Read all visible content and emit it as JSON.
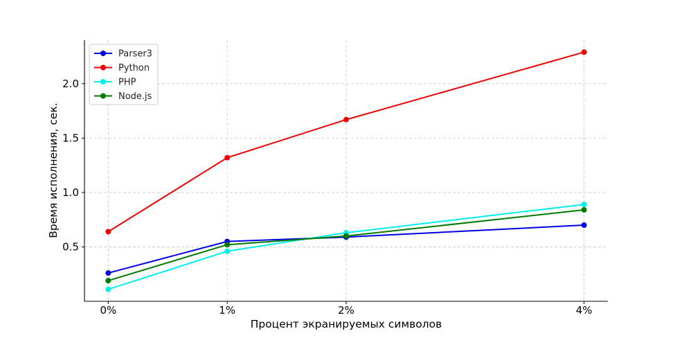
{
  "chart_data": {
    "type": "line",
    "title": "",
    "xlabel": "Процент экранируемых символов",
    "ylabel": "Время исполнения, сек.",
    "x": [
      0,
      1,
      2,
      4
    ],
    "x_tick_labels": [
      "0%",
      "1%",
      "2%",
      "4%"
    ],
    "xlim": [
      -0.2,
      4.2
    ],
    "ylim": [
      0.0,
      2.4
    ],
    "y_ticks": [
      0.5,
      1.0,
      1.5,
      2.0
    ],
    "y_tick_labels": [
      "0.5",
      "1.0",
      "1.5",
      "2.0"
    ],
    "grid": true,
    "legend_position": "top-left",
    "series": [
      {
        "name": "Parser3",
        "color": "#0000e6",
        "values": [
          0.26,
          0.55,
          0.59,
          0.7
        ]
      },
      {
        "name": "Python",
        "color": "#ee0000",
        "values": [
          0.64,
          1.32,
          1.67,
          2.29
        ]
      },
      {
        "name": "PHP",
        "color": "#00f0f0",
        "values": [
          0.11,
          0.46,
          0.63,
          0.89
        ]
      },
      {
        "name": "Node.js",
        "color": "#007a00",
        "values": [
          0.19,
          0.52,
          0.6,
          0.84
        ]
      }
    ]
  }
}
